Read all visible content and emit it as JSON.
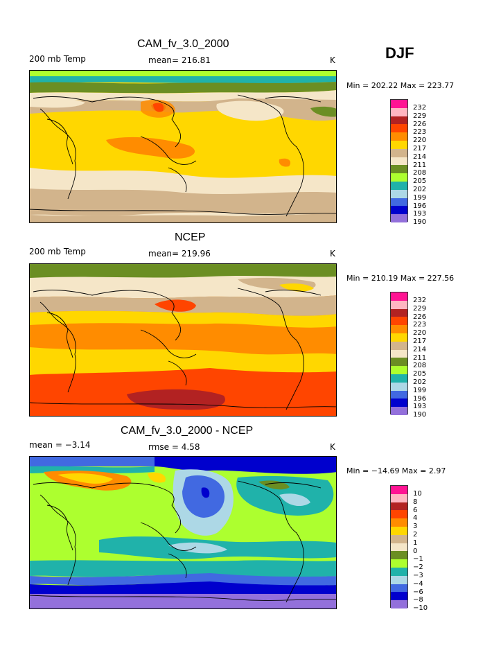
{
  "season": "DJF",
  "units_label": "K",
  "panels": [
    {
      "title": "CAM_fv_3.0_2000",
      "left_label": "200 mb Temp",
      "center_label": "mean= 216.81",
      "right_label": "K",
      "minmax": "Min = 202.22 Max = 223.77"
    },
    {
      "title": "NCEP",
      "left_label": "200 mb Temp",
      "center_label": "mean= 219.96",
      "right_label": "K",
      "minmax": "Min = 210.19 Max = 227.56"
    },
    {
      "title": "CAM_fv_3.0_2000 - NCEP",
      "left_label": "mean =  −3.14",
      "center_label": "rmse =   4.58",
      "right_label": "K",
      "minmax": "Min = −14.69 Max =   2.97"
    }
  ],
  "colorbars": {
    "temp": {
      "levels": [
        "232",
        "229",
        "226",
        "223",
        "220",
        "217",
        "214",
        "211",
        "208",
        "205",
        "202",
        "199",
        "196",
        "193",
        "190"
      ],
      "colors": [
        "#ff1493",
        "#ffb6c1",
        "#b22222",
        "#ff4500",
        "#ff8c00",
        "#ffd700",
        "#d2b48c",
        "#f5e6c8",
        "#6b8e23",
        "#adff2f",
        "#20b2aa",
        "#add8e6",
        "#4169e1",
        "#0000cd",
        "#9370db"
      ]
    },
    "diff": {
      "levels": [
        "10",
        "8",
        "6",
        "4",
        "3",
        "2",
        "1",
        "0",
        "−1",
        "−2",
        "−3",
        "−4",
        "−6",
        "−8",
        "−10"
      ],
      "colors": [
        "#ff1493",
        "#ffb6c1",
        "#b22222",
        "#ff4500",
        "#ff8c00",
        "#ffd700",
        "#d2b48c",
        "#f5e6c8",
        "#6b8e23",
        "#adff2f",
        "#20b2aa",
        "#add8e6",
        "#4169e1",
        "#0000cd",
        "#9370db"
      ]
    }
  }
}
